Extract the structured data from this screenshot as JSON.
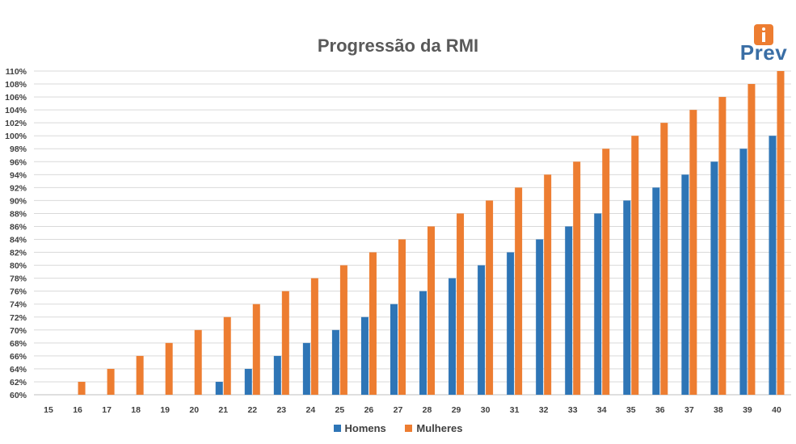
{
  "chart_data": {
    "type": "bar",
    "title": "Progressão da RMI",
    "xlabel": "",
    "ylabel": "",
    "ylim": [
      60,
      110
    ],
    "yticks": [
      "60%",
      "62%",
      "64%",
      "66%",
      "68%",
      "70%",
      "72%",
      "74%",
      "76%",
      "78%",
      "80%",
      "82%",
      "84%",
      "86%",
      "88%",
      "90%",
      "92%",
      "94%",
      "96%",
      "98%",
      "100%",
      "102%",
      "104%",
      "106%",
      "108%",
      "110%"
    ],
    "ytick_values": [
      60,
      62,
      64,
      66,
      68,
      70,
      72,
      74,
      76,
      78,
      80,
      82,
      84,
      86,
      88,
      90,
      92,
      94,
      96,
      98,
      100,
      102,
      104,
      106,
      108,
      110
    ],
    "grid": true,
    "legend_position": "bottom",
    "categories": [
      "15",
      "16",
      "17",
      "18",
      "19",
      "20",
      "21",
      "22",
      "23",
      "24",
      "25",
      "26",
      "27",
      "28",
      "29",
      "30",
      "31",
      "32",
      "33",
      "34",
      "35",
      "36",
      "37",
      "38",
      "39",
      "40"
    ],
    "series": [
      {
        "name": "Homens",
        "color": "#2E75B6",
        "values": [
          null,
          null,
          null,
          null,
          null,
          null,
          62,
          64,
          66,
          68,
          70,
          72,
          74,
          76,
          78,
          80,
          82,
          84,
          86,
          88,
          90,
          92,
          94,
          96,
          98,
          100
        ]
      },
      {
        "name": "Mulheres",
        "color": "#ED7D31",
        "values": [
          null,
          62,
          64,
          66,
          68,
          70,
          72,
          74,
          76,
          78,
          80,
          82,
          84,
          86,
          88,
          90,
          92,
          94,
          96,
          98,
          100,
          102,
          104,
          106,
          108,
          110
        ]
      }
    ]
  },
  "logo": {
    "text": "Prev",
    "color": "#3A6EA5",
    "badge_color": "#ED7D31"
  }
}
